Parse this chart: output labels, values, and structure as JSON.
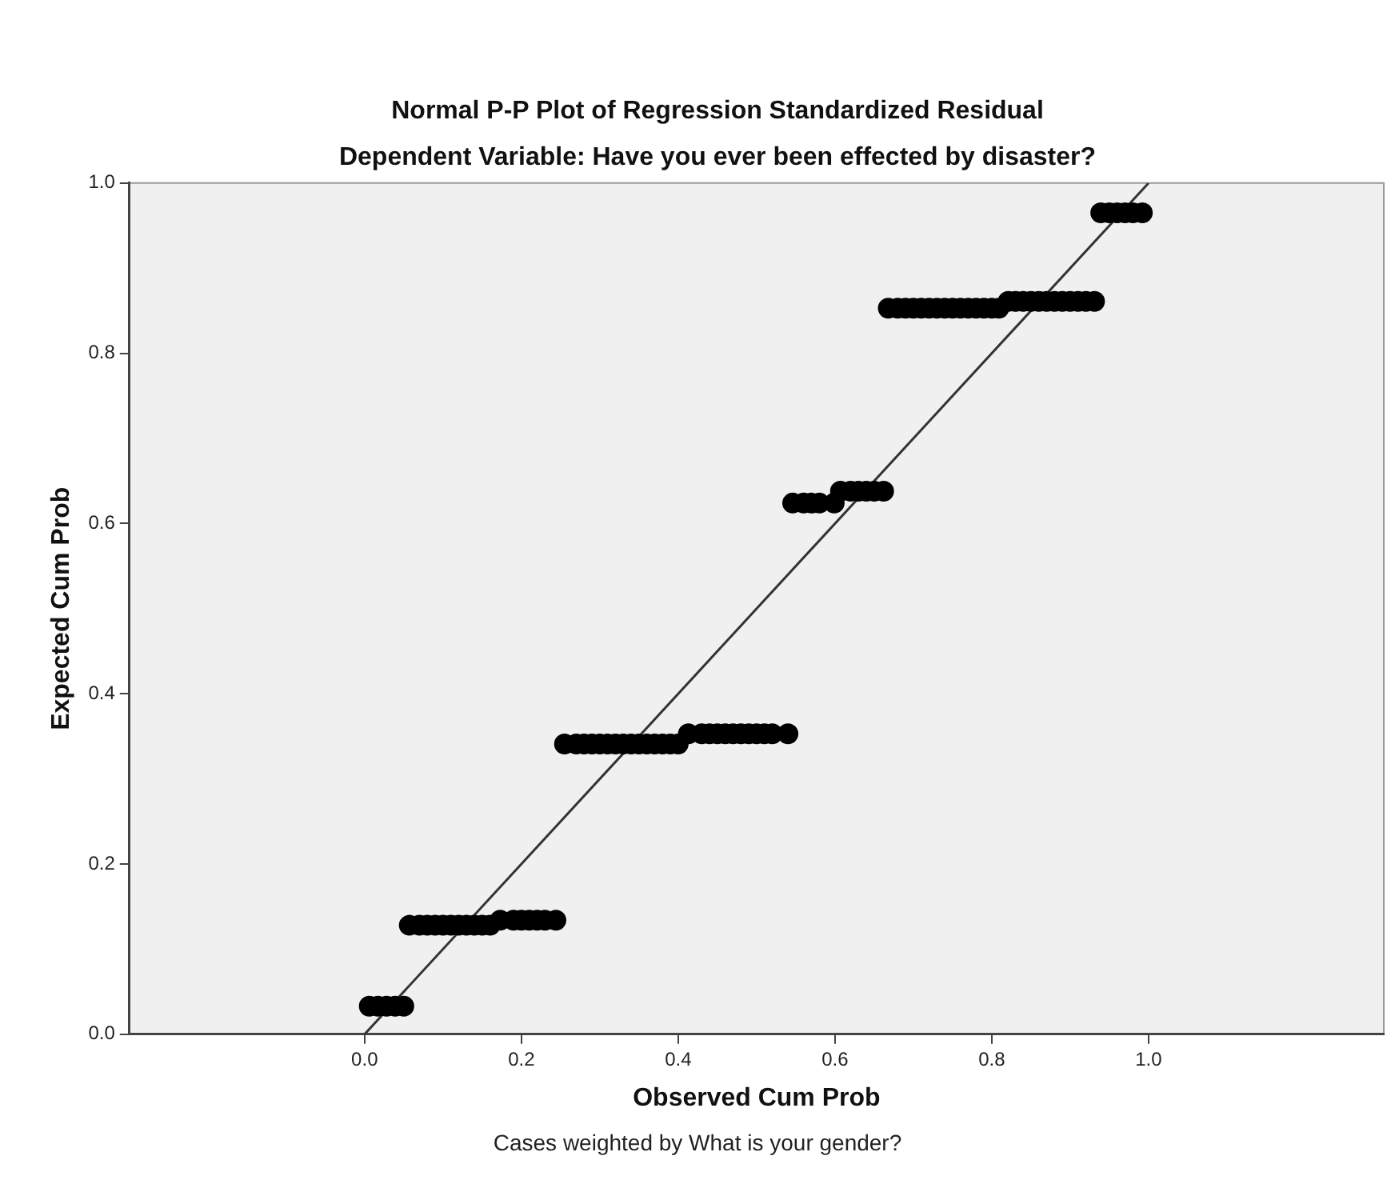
{
  "chart_data": {
    "type": "scatter",
    "title": "Normal P-P Plot of Regression Standardized Residual",
    "subtitle": "Dependent Variable: Have you ever been effected by disaster?",
    "xlabel": "Observed Cum Prob",
    "ylabel": "Expected Cum Prob",
    "annotations": [
      "Cases weighted by What is your gender?"
    ],
    "xlim": [
      -0.3,
      1.3
    ],
    "ylim": [
      0,
      1
    ],
    "xticks": [
      {
        "value": 0,
        "label": "0.0"
      },
      0.2,
      0.4,
      0.6,
      0.8,
      {
        "value": 1,
        "label": "1.0"
      }
    ],
    "yticks": [
      {
        "value": 0,
        "label": "0.0"
      },
      0.2,
      0.4,
      0.6,
      0.8,
      {
        "value": 1,
        "label": "1.0"
      }
    ],
    "grid": false,
    "series": [
      {
        "color": "#000000",
        "marker": "circle",
        "x": [
          0.006,
          0.017,
          0.028,
          0.039,
          0.05,
          0.057,
          0.07,
          0.08,
          0.09,
          0.1,
          0.11,
          0.12,
          0.13,
          0.14,
          0.15,
          0.16,
          0.173,
          0.19,
          0.2,
          0.21,
          0.22,
          0.23,
          0.244,
          0.255,
          0.27,
          0.28,
          0.29,
          0.3,
          0.31,
          0.32,
          0.33,
          0.34,
          0.35,
          0.36,
          0.37,
          0.38,
          0.39,
          0.4,
          0.413,
          0.43,
          0.44,
          0.45,
          0.46,
          0.47,
          0.48,
          0.49,
          0.5,
          0.51,
          0.52,
          0.54,
          0.546,
          0.56,
          0.57,
          0.58,
          0.599,
          0.607,
          0.62,
          0.63,
          0.64,
          0.65,
          0.662,
          0.668,
          0.68,
          0.69,
          0.7,
          0.71,
          0.72,
          0.73,
          0.74,
          0.75,
          0.76,
          0.77,
          0.78,
          0.79,
          0.8,
          0.809,
          0.821,
          0.83,
          0.84,
          0.85,
          0.86,
          0.87,
          0.88,
          0.89,
          0.9,
          0.91,
          0.92,
          0.931,
          0.939,
          0.95,
          0.96,
          0.97,
          0.98,
          0.992
        ],
        "values": [
          0.033,
          0.033,
          0.033,
          0.033,
          0.033,
          0.128,
          0.128,
          0.128,
          0.128,
          0.128,
          0.128,
          0.128,
          0.128,
          0.128,
          0.128,
          0.128,
          0.134,
          0.134,
          0.134,
          0.134,
          0.134,
          0.134,
          0.134,
          0.341,
          0.341,
          0.341,
          0.341,
          0.341,
          0.341,
          0.341,
          0.341,
          0.341,
          0.341,
          0.341,
          0.341,
          0.341,
          0.341,
          0.341,
          0.353,
          0.353,
          0.353,
          0.353,
          0.353,
          0.353,
          0.353,
          0.353,
          0.353,
          0.353,
          0.353,
          0.353,
          0.624,
          0.624,
          0.624,
          0.624,
          0.624,
          0.638,
          0.638,
          0.638,
          0.638,
          0.638,
          0.638,
          0.853,
          0.853,
          0.853,
          0.853,
          0.853,
          0.853,
          0.853,
          0.853,
          0.853,
          0.853,
          0.853,
          0.853,
          0.853,
          0.853,
          0.853,
          0.861,
          0.861,
          0.861,
          0.861,
          0.861,
          0.861,
          0.861,
          0.861,
          0.861,
          0.861,
          0.861,
          0.861,
          0.965,
          0.965,
          0.965,
          0.965,
          0.965,
          0.965
        ]
      },
      {
        "type": "line",
        "marker": "none",
        "color": "#333333",
        "x": [
          0,
          1
        ],
        "values": [
          0,
          1
        ]
      }
    ]
  }
}
